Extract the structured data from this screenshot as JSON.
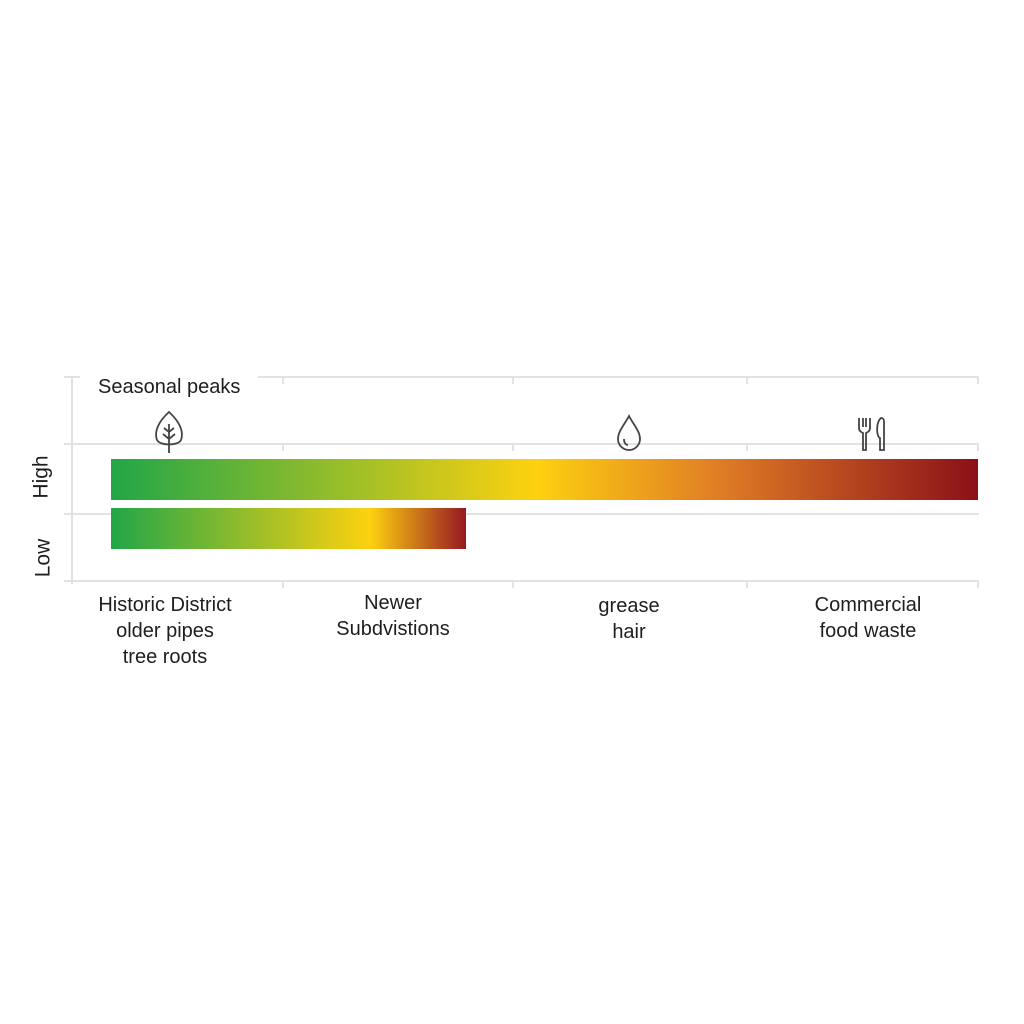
{
  "chart_data": {
    "type": "bar",
    "orientation": "horizontal",
    "annotation": "Seasonal peaks",
    "y_categories": [
      "High",
      "Low"
    ],
    "x_categories": [
      {
        "lines": [
          "Historic District",
          "older pipes",
          "tree roots"
        ],
        "icon": "leaf-icon"
      },
      {
        "lines": [
          "Newer",
          "Subdvistions"
        ]
      },
      {
        "lines": [
          "grease",
          "hair"
        ],
        "icon": "water-drop-icon"
      },
      {
        "lines": [
          "Commercial",
          "food waste"
        ],
        "icon": "fork-knife-icon"
      }
    ],
    "bars": [
      {
        "level": "High",
        "extent_fraction": 1.0,
        "gradient": [
          "#22a648",
          "#fdd110",
          "#e07d25",
          "#8b1019"
        ]
      },
      {
        "level": "Low",
        "extent_fraction": 0.41,
        "gradient": [
          "#22a648",
          "#fdd110",
          "#971722"
        ]
      }
    ],
    "grid": true
  }
}
